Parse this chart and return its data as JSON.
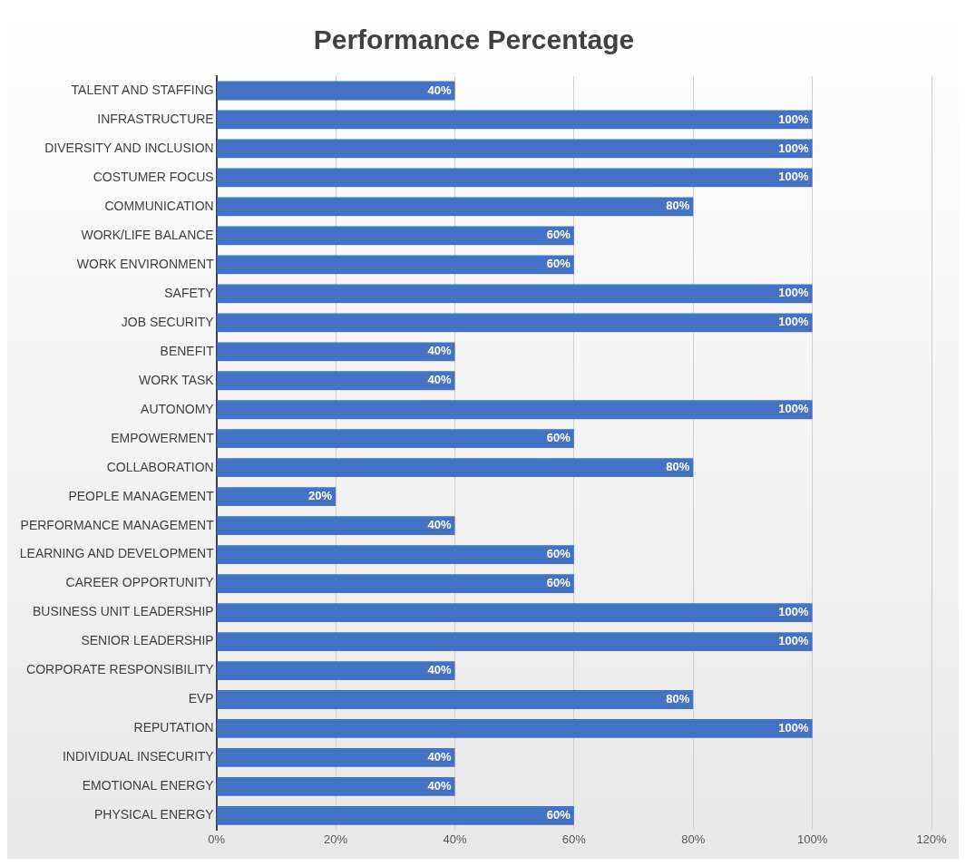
{
  "chart_data": {
    "type": "bar",
    "orientation": "horizontal",
    "title": "Performance Percentage",
    "categories": [
      "TALENT AND STAFFING",
      "INFRASTRUCTURE",
      "DIVERSITY AND INCLUSION",
      "COSTUMER FOCUS",
      "COMMUNICATION",
      "WORK/LIFE BALANCE",
      "WORK ENVIRONMENT",
      "SAFETY",
      "JOB SECURITY",
      "BENEFIT",
      "WORK TASK",
      "AUTONOMY",
      "EMPOWERMENT",
      "COLLABORATION",
      "PEOPLE MANAGEMENT",
      "PERFORMANCE MANAGEMENT",
      "LEARNING AND DEVELOPMENT",
      "CAREER OPPORTUNITY",
      "BUSINESS UNIT LEADERSHIP",
      "SENIOR LEADERSHIP",
      "CORPORATE RESPONSIBILITY",
      "EVP",
      "REPUTATION",
      "INDIVIDUAL INSECURITY",
      "EMOTIONAL ENERGY",
      "PHYSICAL ENERGY"
    ],
    "values": [
      40,
      100,
      100,
      100,
      80,
      60,
      60,
      100,
      100,
      40,
      40,
      100,
      60,
      80,
      20,
      40,
      60,
      60,
      100,
      100,
      40,
      80,
      100,
      40,
      40,
      60
    ],
    "value_labels": [
      "40%",
      "100%",
      "100%",
      "100%",
      "80%",
      "60%",
      "60%",
      "100%",
      "100%",
      "40%",
      "40%",
      "100%",
      "60%",
      "80%",
      "20%",
      "40%",
      "60%",
      "60%",
      "100%",
      "100%",
      "40%",
      "80%",
      "100%",
      "40%",
      "40%",
      "60%"
    ],
    "color": "#4472c4",
    "xlim": [
      0,
      120
    ],
    "xticks": [
      {
        "value": 0,
        "label": "0%"
      },
      {
        "value": 20,
        "label": "20%"
      },
      {
        "value": 40,
        "label": "40%"
      },
      {
        "value": 60,
        "label": "60%"
      },
      {
        "value": 80,
        "label": "80%"
      },
      {
        "value": 100,
        "label": "100%"
      },
      {
        "value": 120,
        "label": "120%"
      }
    ],
    "grid": "x",
    "legend": false
  }
}
